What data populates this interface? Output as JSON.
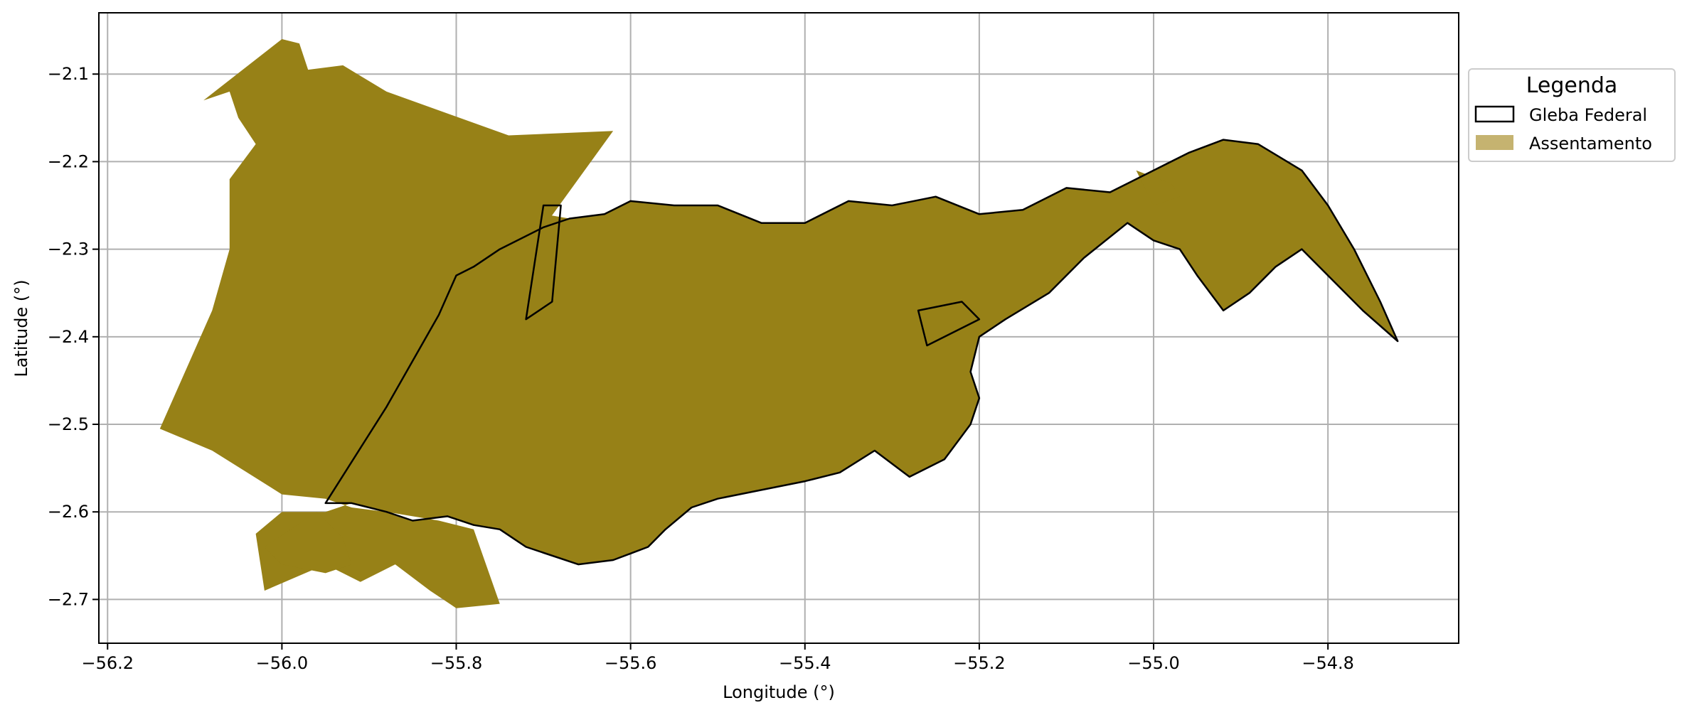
{
  "chart_data": {
    "type": "map",
    "xlabel": "Longitude (°)",
    "ylabel": "Latitude (°)",
    "xlim": [
      -56.21,
      -54.65
    ],
    "ylim": [
      -2.75,
      -2.03
    ],
    "x_ticks": [
      -56.2,
      -56.0,
      -55.8,
      -55.6,
      -55.4,
      -55.2,
      -55.0,
      -54.8
    ],
    "x_tick_labels": [
      "−56.2",
      "−56.0",
      "−55.8",
      "−55.6",
      "−55.4",
      "−55.2",
      "−55.0",
      "−54.8"
    ],
    "y_ticks": [
      -2.1,
      -2.2,
      -2.3,
      -2.4,
      -2.5,
      -2.6,
      -2.7
    ],
    "y_tick_labels": [
      "−2.1",
      "−2.2",
      "−2.3",
      "−2.4",
      "−2.5",
      "−2.6",
      "−2.7"
    ],
    "grid": true,
    "legend": {
      "title": "Legenda",
      "placement": "outside-upper-right",
      "entries": [
        {
          "label": "Gleba Federal",
          "style": "outline",
          "color": "#000000"
        },
        {
          "label": "Assentamento",
          "style": "fill",
          "color": "#c5b370"
        }
      ]
    },
    "layers": [
      {
        "name": "Assentamento",
        "color": "#978117",
        "polygons": [
          [
            [
              -56.0,
              -2.06
            ],
            [
              -55.98,
              -2.065
            ],
            [
              -55.97,
              -2.095
            ],
            [
              -55.93,
              -2.09
            ],
            [
              -55.88,
              -2.12
            ],
            [
              -55.74,
              -2.17
            ],
            [
              -55.62,
              -2.165
            ],
            [
              -55.7,
              -2.275
            ],
            [
              -55.7,
              -2.26
            ],
            [
              -55.67,
              -2.265
            ],
            [
              -55.63,
              -2.26
            ],
            [
              -55.6,
              -2.245
            ],
            [
              -55.55,
              -2.25
            ],
            [
              -55.5,
              -2.25
            ],
            [
              -55.45,
              -2.27
            ],
            [
              -55.4,
              -2.27
            ],
            [
              -55.35,
              -2.245
            ],
            [
              -55.3,
              -2.25
            ],
            [
              -55.25,
              -2.24
            ],
            [
              -55.2,
              -2.26
            ],
            [
              -55.15,
              -2.255
            ],
            [
              -55.1,
              -2.23
            ],
            [
              -55.05,
              -2.235
            ],
            [
              -55.0,
              -2.21
            ],
            [
              -54.96,
              -2.19
            ],
            [
              -54.92,
              -2.175
            ],
            [
              -54.88,
              -2.18
            ],
            [
              -54.83,
              -2.21
            ],
            [
              -54.8,
              -2.25
            ],
            [
              -54.77,
              -2.3
            ],
            [
              -54.74,
              -2.36
            ],
            [
              -54.72,
              -2.405
            ],
            [
              -54.76,
              -2.37
            ],
            [
              -54.8,
              -2.33
            ],
            [
              -54.83,
              -2.3
            ],
            [
              -54.86,
              -2.32
            ],
            [
              -54.89,
              -2.35
            ],
            [
              -54.92,
              -2.37
            ],
            [
              -54.95,
              -2.33
            ],
            [
              -54.97,
              -2.3
            ],
            [
              -55.0,
              -2.29
            ],
            [
              -55.03,
              -2.27
            ],
            [
              -55.08,
              -2.31
            ],
            [
              -55.12,
              -2.35
            ],
            [
              -55.17,
              -2.38
            ],
            [
              -55.2,
              -2.4
            ],
            [
              -55.21,
              -2.44
            ],
            [
              -55.2,
              -2.47
            ],
            [
              -55.21,
              -2.5
            ],
            [
              -55.24,
              -2.54
            ],
            [
              -55.28,
              -2.56
            ],
            [
              -55.32,
              -2.53
            ],
            [
              -55.36,
              -2.555
            ],
            [
              -55.4,
              -2.565
            ],
            [
              -55.45,
              -2.575
            ],
            [
              -55.5,
              -2.585
            ],
            [
              -55.53,
              -2.595
            ],
            [
              -55.56,
              -2.62
            ],
            [
              -55.58,
              -2.64
            ],
            [
              -55.62,
              -2.655
            ],
            [
              -55.66,
              -2.66
            ],
            [
              -55.72,
              -2.64
            ],
            [
              -55.75,
              -2.62
            ],
            [
              -55.78,
              -2.615
            ],
            [
              -55.81,
              -2.605
            ],
            [
              -55.85,
              -2.61
            ],
            [
              -55.88,
              -2.6
            ],
            [
              -55.92,
              -2.59
            ],
            [
              -55.95,
              -2.6
            ],
            [
              -56.0,
              -2.6
            ],
            [
              -56.03,
              -2.625
            ],
            [
              -56.02,
              -2.69
            ],
            [
              -55.95,
              -2.66
            ],
            [
              -55.91,
              -2.68
            ],
            [
              -55.87,
              -2.66
            ],
            [
              -55.83,
              -2.69
            ],
            [
              -55.8,
              -2.71
            ],
            [
              -55.75,
              -2.705
            ],
            [
              -55.78,
              -2.62
            ],
            [
              -55.82,
              -2.61
            ],
            [
              -55.88,
              -2.6
            ],
            [
              -55.92,
              -2.595
            ],
            [
              -55.95,
              -2.585
            ],
            [
              -56.0,
              -2.58
            ],
            [
              -56.04,
              -2.555
            ],
            [
              -56.08,
              -2.53
            ],
            [
              -56.14,
              -2.505
            ],
            [
              -56.08,
              -2.37
            ],
            [
              -56.06,
              -2.3
            ],
            [
              -56.06,
              -2.22
            ],
            [
              -56.03,
              -2.18
            ],
            [
              -56.05,
              -2.15
            ],
            [
              -56.06,
              -2.12
            ],
            [
              -56.09,
              -2.13
            ]
          ],
          [
            [
              -55.96,
              -2.6
            ],
            [
              -55.93,
              -2.63
            ],
            [
              -55.92,
              -2.66
            ],
            [
              -55.95,
              -2.67
            ],
            [
              -56.0,
              -2.66
            ],
            [
              -56.02,
              -2.64
            ]
          ],
          [
            [
              -55.02,
              -2.21
            ],
            [
              -54.98,
              -2.225
            ],
            [
              -54.97,
              -2.24
            ],
            [
              -55.0,
              -2.25
            ]
          ]
        ]
      },
      {
        "name": "Gleba Federal",
        "color": "#000000",
        "polygons": [
          [
            [
              -55.95,
              -2.59
            ],
            [
              -55.88,
              -2.48
            ],
            [
              -55.82,
              -2.375
            ],
            [
              -55.8,
              -2.33
            ],
            [
              -55.78,
              -2.32
            ],
            [
              -55.75,
              -2.3
            ],
            [
              -55.7,
              -2.275
            ],
            [
              -55.67,
              -2.265
            ],
            [
              -55.63,
              -2.26
            ],
            [
              -55.6,
              -2.245
            ],
            [
              -55.55,
              -2.25
            ],
            [
              -55.5,
              -2.25
            ],
            [
              -55.45,
              -2.27
            ],
            [
              -55.4,
              -2.27
            ],
            [
              -55.35,
              -2.245
            ],
            [
              -55.3,
              -2.25
            ],
            [
              -55.25,
              -2.24
            ],
            [
              -55.2,
              -2.26
            ],
            [
              -55.15,
              -2.255
            ],
            [
              -55.1,
              -2.23
            ],
            [
              -55.05,
              -2.235
            ],
            [
              -55.0,
              -2.21
            ],
            [
              -54.96,
              -2.19
            ],
            [
              -54.92,
              -2.175
            ],
            [
              -54.88,
              -2.18
            ],
            [
              -54.83,
              -2.21
            ],
            [
              -54.8,
              -2.25
            ],
            [
              -54.77,
              -2.3
            ],
            [
              -54.74,
              -2.36
            ],
            [
              -54.72,
              -2.405
            ],
            [
              -54.76,
              -2.37
            ],
            [
              -54.8,
              -2.33
            ],
            [
              -54.83,
              -2.3
            ],
            [
              -54.86,
              -2.32
            ],
            [
              -54.89,
              -2.35
            ],
            [
              -54.92,
              -2.37
            ],
            [
              -54.95,
              -2.33
            ],
            [
              -54.97,
              -2.3
            ],
            [
              -55.0,
              -2.29
            ],
            [
              -55.03,
              -2.27
            ],
            [
              -55.08,
              -2.31
            ],
            [
              -55.12,
              -2.35
            ],
            [
              -55.17,
              -2.38
            ],
            [
              -55.2,
              -2.4
            ],
            [
              -55.21,
              -2.44
            ],
            [
              -55.2,
              -2.47
            ],
            [
              -55.21,
              -2.5
            ],
            [
              -55.24,
              -2.54
            ],
            [
              -55.28,
              -2.56
            ],
            [
              -55.32,
              -2.53
            ],
            [
              -55.36,
              -2.555
            ],
            [
              -55.4,
              -2.565
            ],
            [
              -55.45,
              -2.575
            ],
            [
              -55.5,
              -2.585
            ],
            [
              -55.53,
              -2.595
            ],
            [
              -55.56,
              -2.62
            ],
            [
              -55.58,
              -2.64
            ],
            [
              -55.62,
              -2.655
            ],
            [
              -55.66,
              -2.66
            ],
            [
              -55.72,
              -2.64
            ],
            [
              -55.75,
              -2.62
            ],
            [
              -55.78,
              -2.615
            ],
            [
              -55.81,
              -2.605
            ],
            [
              -55.85,
              -2.61
            ],
            [
              -55.88,
              -2.6
            ],
            [
              -55.92,
              -2.59
            ]
          ],
          [
            [
              -55.72,
              -2.38
            ],
            [
              -55.69,
              -2.36
            ],
            [
              -55.68,
              -2.25
            ],
            [
              -55.7,
              -2.25
            ]
          ],
          [
            [
              -55.27,
              -2.37
            ],
            [
              -55.22,
              -2.36
            ],
            [
              -55.2,
              -2.38
            ],
            [
              -55.26,
              -2.41
            ]
          ]
        ]
      }
    ]
  }
}
